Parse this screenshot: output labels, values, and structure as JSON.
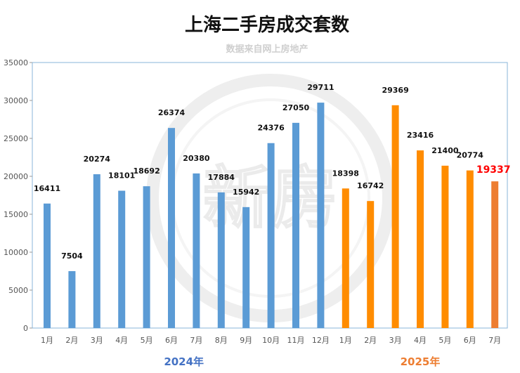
{
  "chart_data": {
    "type": "bar",
    "title": "上海二手房成交套数",
    "subtitle": "数据来自网上房地产",
    "xlabel": "",
    "ylabel": "",
    "ylim": [
      0,
      35000
    ],
    "yticks": [
      0,
      5000,
      10000,
      15000,
      20000,
      25000,
      30000,
      35000
    ],
    "grid": false,
    "groups": [
      {
        "label": "2024年",
        "color": "#5b9bd5",
        "categories": [
          "1月",
          "2月",
          "3月",
          "4月",
          "5月",
          "6月",
          "7月",
          "8月",
          "9月",
          "10月",
          "11月",
          "12月"
        ],
        "values": [
          16411,
          7504,
          20274,
          18101,
          18692,
          26374,
          20380,
          17884,
          15942,
          24376,
          27050,
          29711
        ]
      },
      {
        "label": "2025年",
        "color": "#ff8c00",
        "categories": [
          "1月",
          "2月",
          "3月",
          "4月",
          "5月",
          "6月",
          "7月"
        ],
        "values": [
          18398,
          16742,
          29369,
          23416,
          21400,
          20774,
          19337
        ]
      }
    ],
    "highlight": {
      "index": 18,
      "bar_color": "#ed7d31",
      "label_color": "#ff0000"
    }
  },
  "watermark": {
    "text": "新房"
  },
  "colors": {
    "year2024": "#4472c4",
    "year2025": "#ed7d31",
    "axis": "#8ab4d8"
  }
}
